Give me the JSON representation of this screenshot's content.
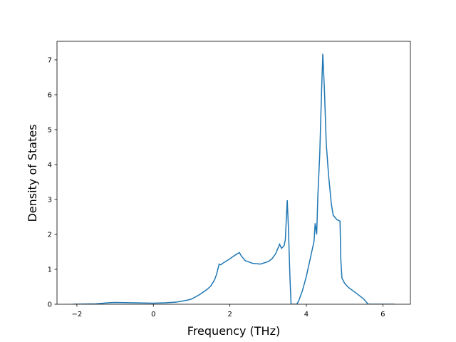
{
  "chart_data": {
    "type": "line",
    "x_label": "Frequency (THz)",
    "y_label": "Density of States",
    "x": [
      -2.1,
      -1.5,
      -1.2,
      -1.0,
      -0.5,
      0,
      0.3,
      0.6,
      0.9,
      1.0,
      1.2,
      1.4,
      1.5,
      1.6,
      1.65,
      1.72,
      1.76,
      1.85,
      2.0,
      2.1,
      2.2,
      2.25,
      2.3,
      2.4,
      2.6,
      2.8,
      3.0,
      3.1,
      3.2,
      3.3,
      3.35,
      3.42,
      3.45,
      3.5,
      3.53,
      3.57,
      3.6,
      3.75,
      3.8,
      3.9,
      4.0,
      4.1,
      4.2,
      4.23,
      4.27,
      4.3,
      4.35,
      4.4,
      4.43,
      4.47,
      4.52,
      4.58,
      4.65,
      4.7,
      4.8,
      4.88,
      4.9,
      4.93,
      5.0,
      5.1,
      5.3,
      5.5,
      5.6,
      5.62,
      6.3
    ],
    "series": [
      {
        "color": "#1f77b4",
        "values": [
          0,
          0.01,
          0.04,
          0.05,
          0.04,
          0.03,
          0.04,
          0.06,
          0.12,
          0.15,
          0.27,
          0.42,
          0.52,
          0.7,
          0.85,
          1.15,
          1.13,
          1.2,
          1.3,
          1.38,
          1.45,
          1.48,
          1.38,
          1.25,
          1.17,
          1.15,
          1.22,
          1.3,
          1.45,
          1.72,
          1.6,
          1.68,
          1.85,
          2.98,
          2.2,
          0.8,
          0,
          0,
          0.1,
          0.4,
          0.8,
          1.3,
          1.8,
          2.32,
          2.0,
          3.1,
          4.3,
          6.2,
          7.17,
          6.2,
          4.6,
          3.7,
          2.9,
          2.55,
          2.42,
          2.38,
          1.3,
          0.75,
          0.6,
          0.48,
          0.32,
          0.15,
          0.02,
          0,
          0
        ]
      }
    ],
    "xlim": [
      -2.52,
      6.72
    ],
    "ylim": [
      0,
      7.53
    ],
    "xticks": [
      {
        "value": -2,
        "label": "−2"
      },
      0,
      2,
      4,
      6
    ],
    "yticks": [
      0,
      1,
      2,
      3,
      4,
      5,
      6,
      7
    ]
  }
}
